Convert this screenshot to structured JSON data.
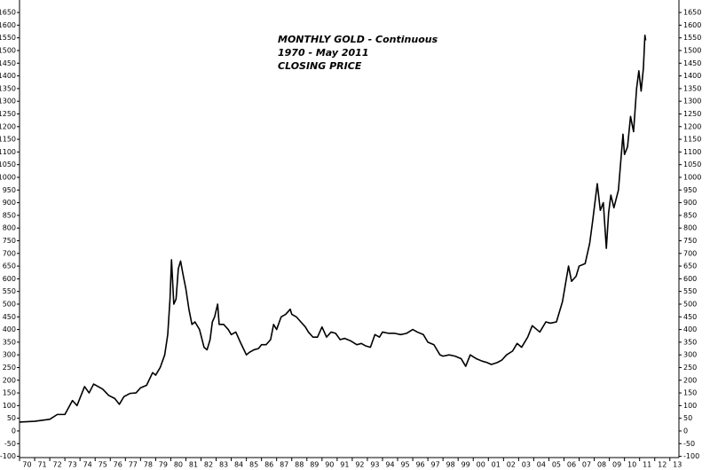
{
  "chart_data": {
    "type": "line",
    "title_lines": [
      "MONTHLY GOLD - Continuous",
      "1970 - May 2011",
      "CLOSING PRICE"
    ],
    "color": "#000000",
    "xlim": [
      1970,
      2013.6
    ],
    "ylim": [
      -105,
      1680
    ],
    "yticks": [
      -100,
      -50,
      0,
      50,
      100,
      150,
      200,
      250,
      300,
      350,
      400,
      450,
      500,
      550,
      600,
      650,
      700,
      750,
      800,
      850,
      900,
      950,
      1000,
      1050,
      1100,
      1150,
      1200,
      1250,
      1300,
      1350,
      1400,
      1450,
      1500,
      1550,
      1600,
      1650
    ],
    "xticks": [
      {
        "value": 1970,
        "label": "70"
      },
      {
        "value": 1971,
        "label": "71"
      },
      {
        "value": 1972,
        "label": "72"
      },
      {
        "value": 1973,
        "label": "73"
      },
      {
        "value": 1974,
        "label": "74"
      },
      {
        "value": 1975,
        "label": "75"
      },
      {
        "value": 1976,
        "label": "76"
      },
      {
        "value": 1977,
        "label": "77"
      },
      {
        "value": 1978,
        "label": "78"
      },
      {
        "value": 1979,
        "label": "79"
      },
      {
        "value": 1980,
        "label": "80"
      },
      {
        "value": 1981,
        "label": "81"
      },
      {
        "value": 1982,
        "label": "82"
      },
      {
        "value": 1983,
        "label": "83"
      },
      {
        "value": 1984,
        "label": "84"
      },
      {
        "value": 1985,
        "label": "85"
      },
      {
        "value": 1986,
        "label": "86"
      },
      {
        "value": 1987,
        "label": "87"
      },
      {
        "value": 1988,
        "label": "88"
      },
      {
        "value": 1989,
        "label": "89"
      },
      {
        "value": 1990,
        "label": "90"
      },
      {
        "value": 1991,
        "label": "91"
      },
      {
        "value": 1992,
        "label": "92"
      },
      {
        "value": 1993,
        "label": "93"
      },
      {
        "value": 1994,
        "label": "94"
      },
      {
        "value": 1995,
        "label": "95"
      },
      {
        "value": 1996,
        "label": "96"
      },
      {
        "value": 1997,
        "label": "97"
      },
      {
        "value": 1998,
        "label": "98"
      },
      {
        "value": 1999,
        "label": "99"
      },
      {
        "value": 2000,
        "label": "00"
      },
      {
        "value": 2001,
        "label": "01"
      },
      {
        "value": 2002,
        "label": "02"
      },
      {
        "value": 2003,
        "label": "03"
      },
      {
        "value": 2004,
        "label": "04"
      },
      {
        "value": 2005,
        "label": "05"
      },
      {
        "value": 2006,
        "label": "06"
      },
      {
        "value": 2007,
        "label": "07"
      },
      {
        "value": 2008,
        "label": "08"
      },
      {
        "value": 2009,
        "label": "09"
      },
      {
        "value": 2010,
        "label": "10"
      },
      {
        "value": 2011,
        "label": "11"
      },
      {
        "value": 2012,
        "label": "12"
      },
      {
        "value": 2013,
        "label": "13"
      }
    ],
    "x": [
      1970.0,
      1971.0,
      1972.0,
      1972.5,
      1973.0,
      1973.5,
      1973.8,
      1974.0,
      1974.3,
      1974.6,
      1974.9,
      1975.2,
      1975.5,
      1975.9,
      1976.3,
      1976.6,
      1976.9,
      1977.3,
      1977.7,
      1978.0,
      1978.4,
      1978.8,
      1979.0,
      1979.3,
      1979.6,
      1979.8,
      1979.95,
      1980.05,
      1980.2,
      1980.35,
      1980.5,
      1980.65,
      1980.8,
      1981.0,
      1981.2,
      1981.4,
      1981.6,
      1981.9,
      1982.2,
      1982.4,
      1982.6,
      1982.75,
      1982.9,
      1983.1,
      1983.2,
      1983.5,
      1983.8,
      1984.0,
      1984.3,
      1984.6,
      1985.0,
      1985.2,
      1985.5,
      1985.8,
      1986.0,
      1986.3,
      1986.6,
      1986.8,
      1987.0,
      1987.3,
      1987.6,
      1987.9,
      1988.0,
      1988.3,
      1988.6,
      1988.9,
      1989.1,
      1989.4,
      1989.7,
      1990.0,
      1990.3,
      1990.6,
      1990.9,
      1991.2,
      1991.5,
      1991.9,
      1992.3,
      1992.6,
      1992.9,
      1993.2,
      1993.5,
      1993.8,
      1994.0,
      1994.4,
      1994.8,
      1995.2,
      1995.6,
      1996.0,
      1996.3,
      1996.7,
      1997.0,
      1997.4,
      1997.8,
      1998.0,
      1998.4,
      1998.8,
      1999.2,
      1999.5,
      1999.8,
      2000.2,
      2000.6,
      2000.9,
      2001.2,
      2001.6,
      2001.9,
      2002.2,
      2002.6,
      2002.9,
      2003.2,
      2003.6,
      2003.9,
      2004.2,
      2004.4,
      2004.8,
      2005.1,
      2005.5,
      2005.9,
      2006.3,
      2006.5,
      2006.8,
      2007.0,
      2007.4,
      2007.7,
      2007.9,
      2008.2,
      2008.4,
      2008.6,
      2008.8,
      2008.95,
      2009.1,
      2009.3,
      2009.6,
      2009.9,
      2010.0,
      2010.2,
      2010.4,
      2010.6,
      2010.8,
      2010.95,
      2011.1,
      2011.25,
      2011.35,
      2011.4
    ],
    "values": [
      35,
      38,
      46,
      65,
      65,
      120,
      100,
      130,
      175,
      150,
      185,
      175,
      165,
      140,
      128,
      105,
      135,
      148,
      150,
      170,
      180,
      230,
      220,
      250,
      300,
      380,
      520,
      675,
      500,
      520,
      640,
      670,
      620,
      560,
      480,
      420,
      430,
      400,
      330,
      320,
      360,
      430,
      450,
      500,
      420,
      420,
      400,
      380,
      390,
      350,
      300,
      310,
      320,
      325,
      340,
      340,
      360,
      420,
      400,
      450,
      460,
      480,
      460,
      450,
      430,
      410,
      390,
      370,
      370,
      410,
      370,
      390,
      385,
      360,
      365,
      355,
      340,
      345,
      335,
      330,
      380,
      370,
      390,
      385,
      385,
      380,
      385,
      400,
      390,
      380,
      350,
      340,
      300,
      295,
      300,
      295,
      285,
      255,
      300,
      285,
      275,
      270,
      262,
      270,
      280,
      300,
      315,
      345,
      330,
      370,
      415,
      400,
      390,
      430,
      425,
      430,
      510,
      650,
      590,
      610,
      650,
      660,
      740,
      830,
      975,
      870,
      900,
      720,
      860,
      930,
      880,
      950,
      1170,
      1090,
      1120,
      1240,
      1180,
      1350,
      1420,
      1340,
      1430,
      1560,
      1540
    ]
  }
}
